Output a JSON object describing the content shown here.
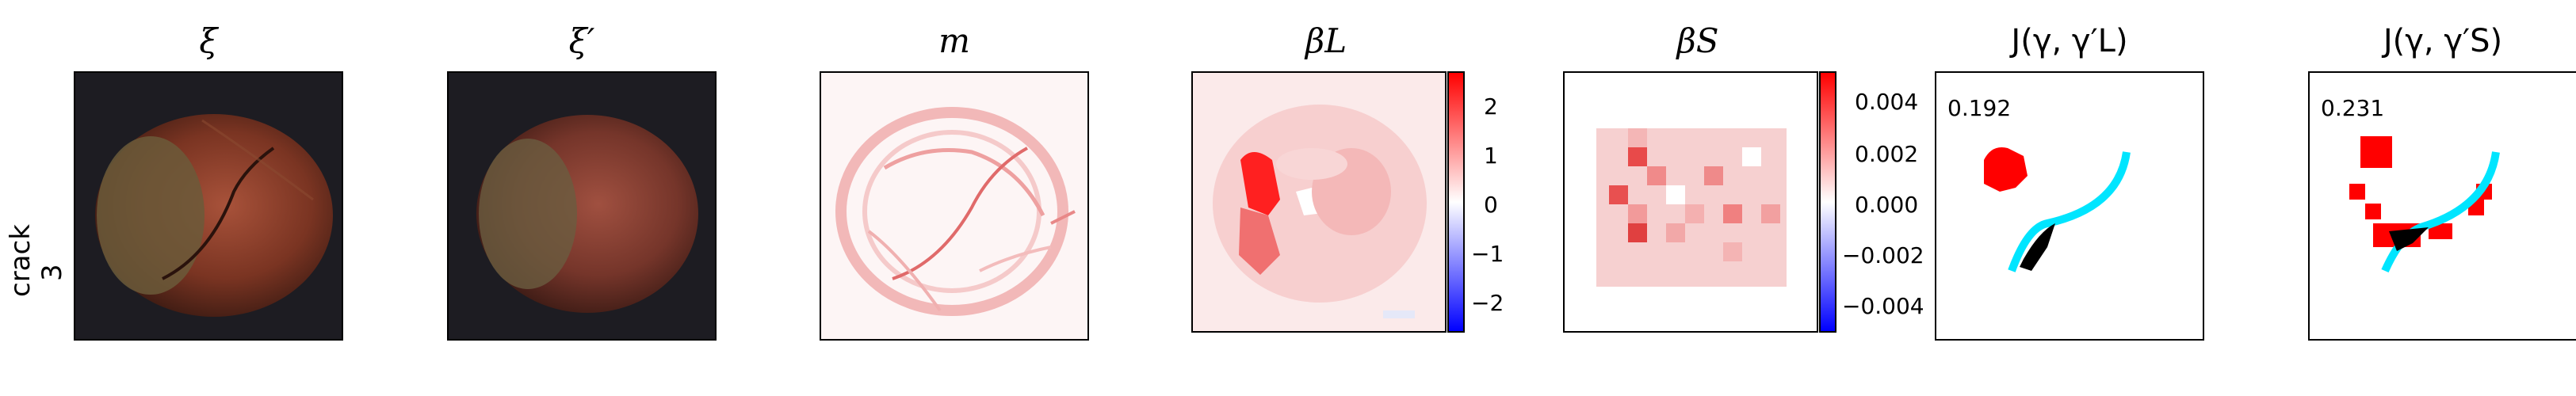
{
  "row_label": [
    "crack",
    "3"
  ],
  "panels": [
    {
      "title": "ξ"
    },
    {
      "title": "ξ′"
    },
    {
      "title": "m"
    },
    {
      "title": "βL",
      "sub": "L"
    },
    {
      "title": "βS",
      "sub": "S"
    },
    {
      "title": "J(γ, γ′L)"
    },
    {
      "title": "J(γ, γ′S)"
    }
  ],
  "colorbar_L": {
    "ticks": [
      "2",
      "1",
      "0",
      "−1",
      "−2"
    ],
    "range": [
      -2.5,
      2.5
    ]
  },
  "colorbar_S": {
    "ticks": [
      "0.004",
      "0.002",
      "0.000",
      "−0.002",
      "−0.004"
    ],
    "range": [
      -0.005,
      0.005
    ]
  },
  "scores": {
    "L": "0.192",
    "S": "0.231"
  },
  "colors": {
    "positive": "#ff0000",
    "negative": "#0000ff",
    "gt": "#00e5ff",
    "overlap": "#000000"
  }
}
